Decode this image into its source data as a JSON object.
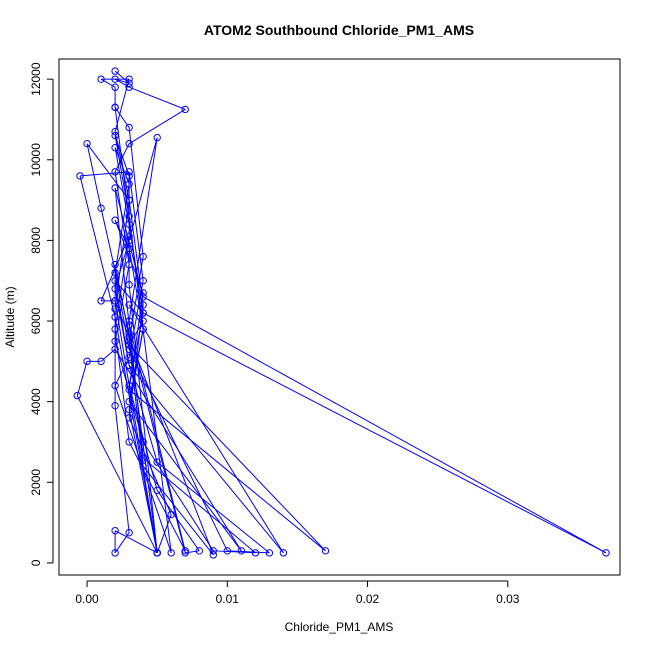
{
  "chart_data": {
    "type": "line",
    "title": "ATOM2 Southbound Chloride_PM1_AMS",
    "xlabel": "Chloride_PM1_AMS",
    "ylabel": "Altitude (m)",
    "xlim": [
      -0.002,
      0.038
    ],
    "ylim": [
      -300,
      12500
    ],
    "x_ticks": [
      0.0,
      0.01,
      0.02,
      0.03
    ],
    "x_tick_labels": [
      "0.00",
      "0.01",
      "0.02",
      "0.03"
    ],
    "y_ticks": [
      0,
      2000,
      4000,
      6000,
      8000,
      10000,
      12000
    ],
    "y_tick_labels": [
      "0",
      "2000",
      "4000",
      "6000",
      "8000",
      "10000",
      "12000"
    ],
    "grid": false,
    "legend": "none",
    "series": [
      {
        "color": "#0000ff",
        "marker": "open-circle",
        "points": [
          [
            0.002,
            12200
          ],
          [
            0.003,
            11900
          ],
          [
            0.002,
            12000
          ],
          [
            0.003,
            11800
          ],
          [
            0.007,
            11250
          ],
          [
            0.003,
            10400
          ],
          [
            0.002,
            9700
          ],
          [
            0.003,
            7400
          ],
          [
            0.002,
            5500
          ],
          [
            0.004,
            3000
          ],
          [
            0.009,
            300
          ],
          [
            0.012,
            250
          ],
          [
            0.004,
            2600
          ],
          [
            0.003,
            6000
          ],
          [
            0.005,
            10550
          ],
          [
            0.003,
            8000
          ],
          [
            0.002,
            6800
          ],
          [
            0.003,
            4900
          ],
          [
            0.005,
            2500
          ],
          [
            0.013,
            250
          ],
          [
            0.01,
            300
          ],
          [
            0.003,
            5300
          ],
          [
            0.002,
            7200
          ],
          [
            0.003,
            9400
          ],
          [
            0.002,
            10300
          ],
          [
            0.003,
            8400
          ],
          [
            0.004,
            6200
          ],
          [
            0.003,
            4400
          ],
          [
            0.005,
            1800
          ],
          [
            0.008,
            300
          ],
          [
            0.007,
            250
          ],
          [
            0.003,
            5700
          ],
          [
            0.001,
            8800
          ],
          [
            0.0,
            10400
          ],
          [
            0.003,
            9000
          ],
          [
            0.004,
            6400
          ],
          [
            0.003,
            3600
          ],
          [
            0.006,
            1200
          ],
          [
            0.005,
            250
          ],
          [
            0.003,
            6900
          ],
          [
            0.003,
            9600
          ],
          [
            0.002,
            10600
          ],
          [
            0.003,
            8600
          ],
          [
            0.004,
            5800
          ],
          [
            0.003,
            3800
          ],
          [
            0.005,
            250
          ],
          [
            0.002,
            6100
          ],
          [
            -0.0005,
            9600
          ],
          [
            0.003,
            9700
          ],
          [
            0.004,
            7000
          ],
          [
            0.003,
            5100
          ],
          [
            0.002,
            4400
          ],
          [
            0.006,
            250
          ],
          [
            0.002,
            11300
          ],
          [
            0.003,
            10800
          ],
          [
            0.004,
            7600
          ],
          [
            0.003,
            5500
          ],
          [
            0.004,
            2400
          ],
          [
            0.009,
            200
          ],
          [
            0.002,
            6500
          ],
          [
            0.001,
            6500
          ],
          [
            0.003,
            8100
          ],
          [
            0.002,
            5800
          ],
          [
            0.003,
            3000
          ],
          [
            0.007,
            300
          ],
          [
            0.003,
            5900
          ],
          [
            0.002,
            9300
          ],
          [
            0.004,
            6600
          ],
          [
            0.037,
            250
          ],
          [
            0.004,
            6200
          ],
          [
            0.002,
            7000
          ],
          [
            0.003,
            4900
          ],
          [
            0.014,
            250
          ],
          [
            0.003,
            6400
          ],
          [
            0.004,
            6000
          ],
          [
            0.003,
            5400
          ],
          [
            0.017,
            300
          ],
          [
            0.003,
            4300
          ],
          [
            0.004,
            6700
          ],
          [
            0.002,
            8500
          ],
          [
            0.003,
            7800
          ],
          [
            0.004,
            5800
          ],
          [
            0.003,
            4000
          ],
          [
            0.011,
            300
          ],
          [
            0.002,
            5300
          ],
          [
            0.001,
            5000
          ],
          [
            0.0,
            5000
          ],
          [
            -0.0007,
            4150
          ],
          [
            0.005,
            250
          ],
          [
            0.002,
            6500
          ],
          [
            0.002,
            7400
          ],
          [
            0.003,
            5600
          ],
          [
            0.005,
            250
          ],
          [
            0.002,
            800
          ],
          [
            0.002,
            250
          ],
          [
            0.003,
            750
          ],
          [
            0.002,
            3900
          ],
          [
            0.002,
            6300
          ],
          [
            0.003,
            9000
          ],
          [
            0.002,
            10700
          ],
          [
            0.003,
            12000
          ],
          [
            0.001,
            12000
          ],
          [
            0.002,
            11800
          ],
          [
            0.002,
            11300
          ]
        ]
      }
    ]
  }
}
